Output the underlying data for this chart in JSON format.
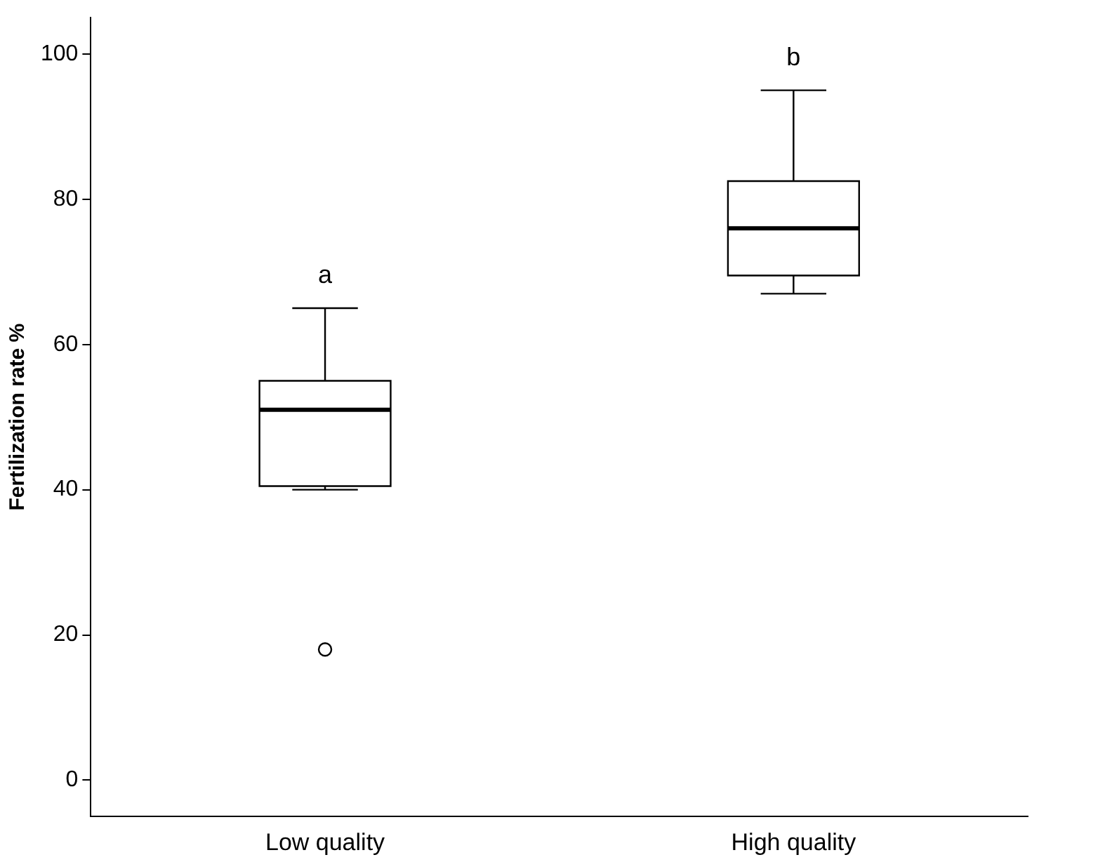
{
  "chart_data": {
    "type": "box",
    "ylabel": "Fertilization rate %",
    "categories": [
      "Low quality",
      "High quality"
    ],
    "boxes": [
      {
        "low": 40,
        "q1": 40.5,
        "median": 51,
        "q3": 55,
        "high": 65,
        "outliers": [
          18
        ]
      },
      {
        "low": 67,
        "q1": 69.5,
        "median": 76,
        "q3": 82.5,
        "high": 95
      }
    ],
    "color": "#ffffff",
    "ylim": [
      -5,
      105
    ],
    "yticks": [
      0,
      20,
      40,
      60,
      80,
      100
    ],
    "grid": false,
    "legend": false,
    "annotations": [
      "a",
      "b"
    ]
  }
}
